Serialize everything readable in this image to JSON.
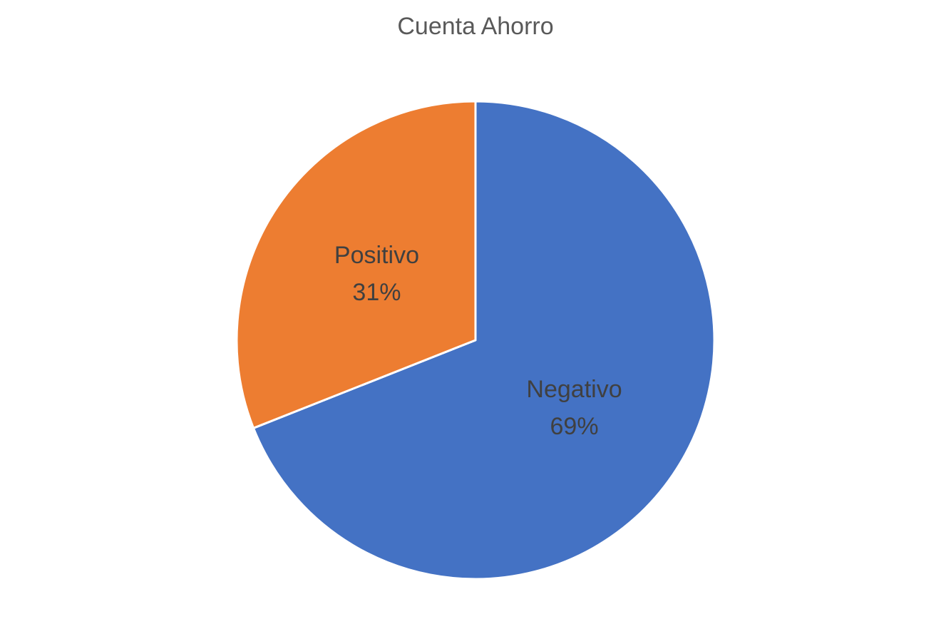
{
  "chart_data": {
    "type": "pie",
    "title": "Cuenta Ahorro",
    "legend": "none",
    "slices": [
      {
        "label": "Negativo",
        "value": 69,
        "display": "69%",
        "color": "#4472C4"
      },
      {
        "label": "Positivo",
        "value": 31,
        "display": "31%",
        "color": "#ED7D31"
      }
    ]
  }
}
